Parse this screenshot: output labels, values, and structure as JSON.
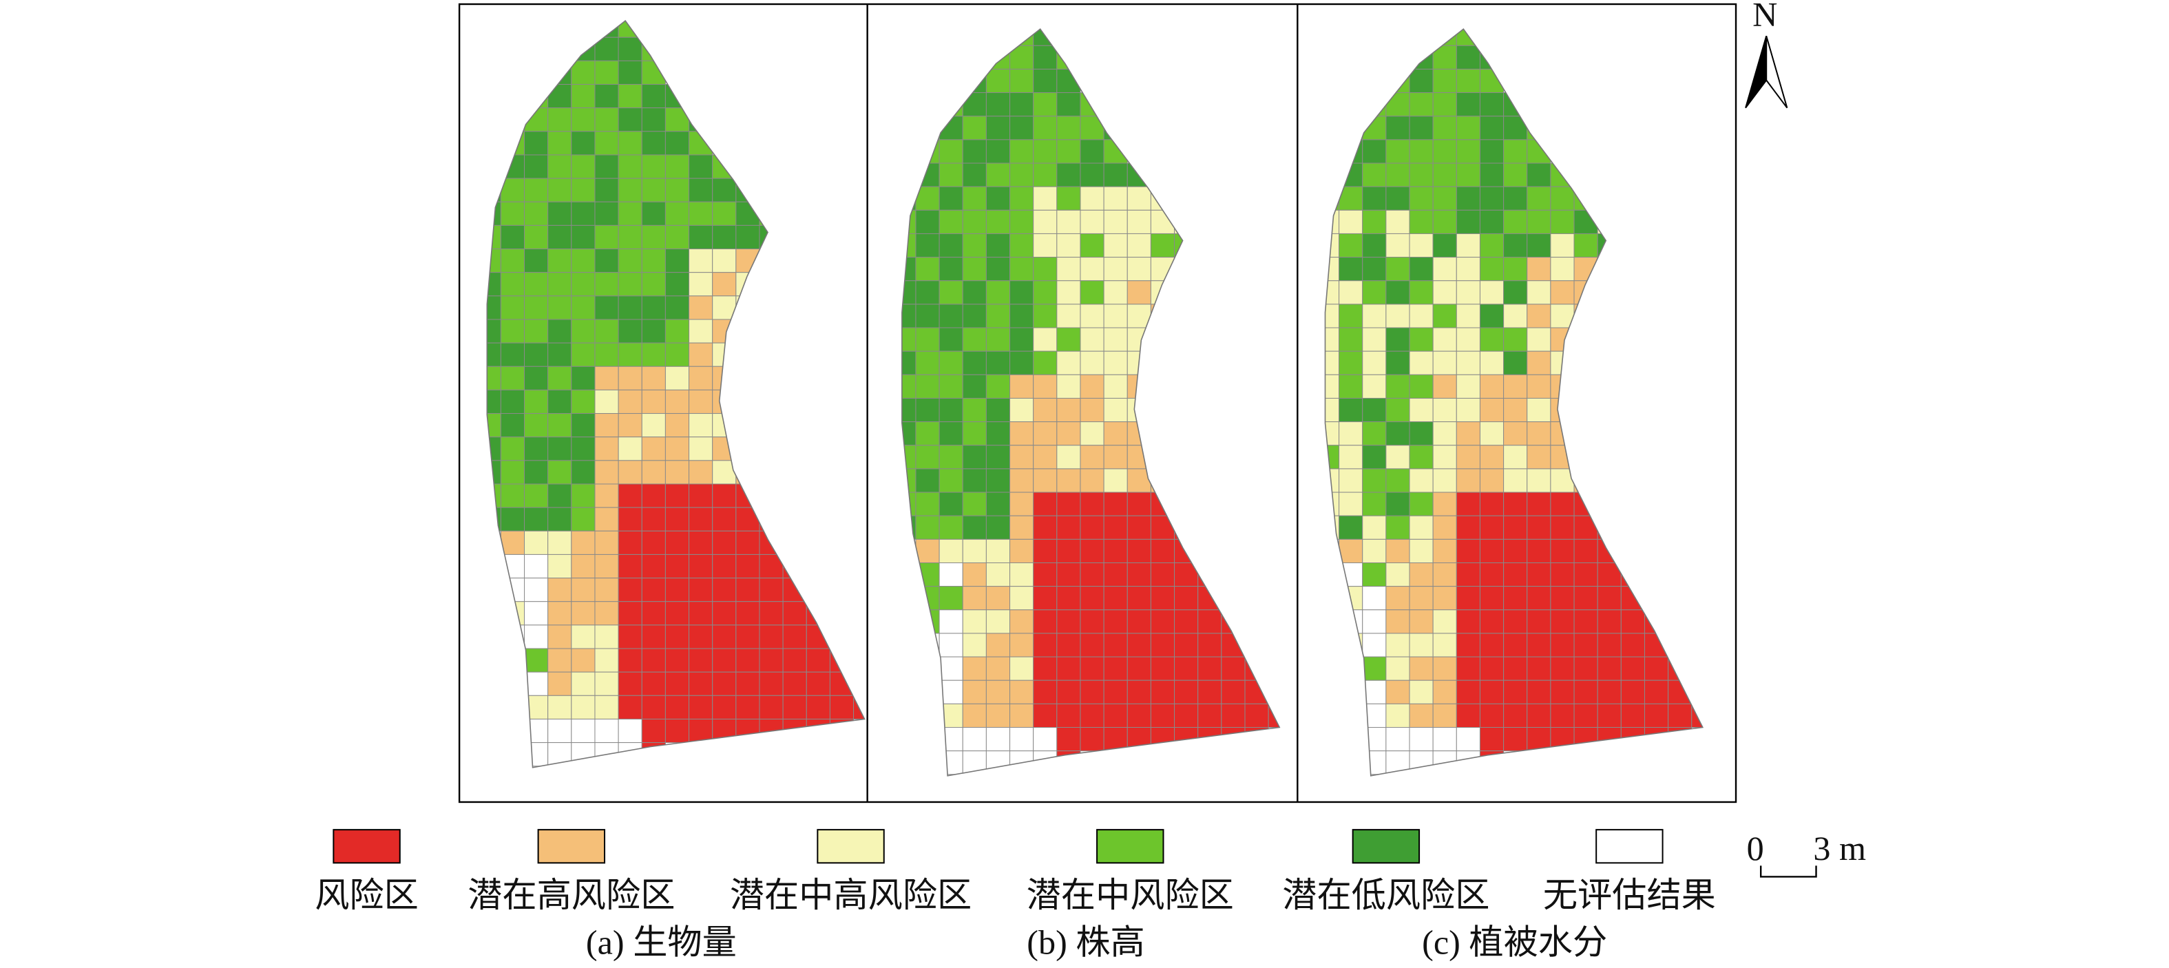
{
  "panels": [
    {
      "caption": "(a) 生物量"
    },
    {
      "caption": "(b) 株高"
    },
    {
      "caption": "(c) 植被水分"
    }
  ],
  "legend": [
    {
      "label": "风险区",
      "color": "#e32a27"
    },
    {
      "label": "潜在高风险区",
      "color": "#f5bf78"
    },
    {
      "label": "潜在中高风险区",
      "color": "#f6f5b5"
    },
    {
      "label": "潜在中风险区",
      "color": "#6dc52c"
    },
    {
      "label": "潜在低风险区",
      "color": "#3f9e33"
    },
    {
      "label": "无评估结果",
      "color": "#ffffff"
    }
  ],
  "north": "N",
  "scale": {
    "start": "0",
    "end": "3 m"
  }
}
